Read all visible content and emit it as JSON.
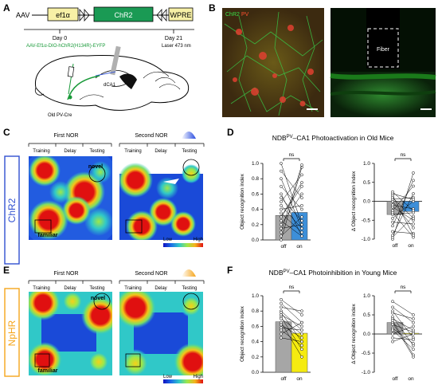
{
  "panels": {
    "A": {
      "letter": "A",
      "construct": {
        "aav": "AAV",
        "ef1a": "ef1α",
        "chr2": "ChR2",
        "wpre": "WPRE"
      },
      "timeline": {
        "day0": "Day 0",
        "day21": "Day 21",
        "virus": "AAV-Ef1α-DIO-hChR2(H134R)-EYFP",
        "laser": "Laser 473 nm"
      },
      "brain": {
        "region": "dCA1",
        "mouse": "Old PV-Cre"
      }
    },
    "B": {
      "letter": "B",
      "legend_chr2": "ChR2",
      "legend_pv": "PV",
      "fiber_label": "Fiber"
    },
    "C": {
      "letter": "C",
      "side_label": "ChR2",
      "first_nor": "First NOR",
      "second_nor": "Second NOR",
      "phases": [
        "Training",
        "Delay",
        "Testing"
      ],
      "novel": "novel",
      "familiar": "familiar",
      "scale_low": "Low",
      "scale_high": "High"
    },
    "D": {
      "letter": "D",
      "title_pre": "NDB",
      "title_sup": "PV",
      "title_post": "–CA1 Photoactivation in Old Mice",
      "ns": "ns",
      "colors": {
        "off": "#a6a6a6",
        "on": "#3d8fd9"
      }
    },
    "E": {
      "letter": "E",
      "side_label": "NpHR",
      "first_nor": "First NOR",
      "second_nor": "Second NOR",
      "phases": [
        "Training",
        "Delay",
        "Testing"
      ],
      "novel": "novel",
      "familiar": "familiar",
      "scale_low": "Low",
      "scale_high": "High"
    },
    "F": {
      "letter": "F",
      "title_pre": "NDB",
      "title_sup": "PV",
      "title_post": "–CA1 Photoinhibition in Young Mice",
      "ns": "ns",
      "colors": {
        "off": "#a6a6a6",
        "on": "#f5eb10"
      }
    }
  },
  "chart_data": [
    {
      "type": "bar",
      "panel": "D-left",
      "categories": [
        "off",
        "on"
      ],
      "values": [
        0.32,
        0.36
      ],
      "ylabel": "Object recognition index",
      "ylim": [
        0,
        1.0
      ],
      "yticks": [
        "0.0",
        "0.2",
        "0.4",
        "0.6",
        "0.8",
        "1.0"
      ],
      "pairs": [
        [
          0.0,
          0.95
        ],
        [
          0.05,
          0.3
        ],
        [
          0.1,
          0.98
        ],
        [
          0.15,
          0.2
        ],
        [
          0.2,
          0.6
        ],
        [
          0.25,
          0.05
        ],
        [
          0.3,
          0.75
        ],
        [
          0.35,
          0.1
        ],
        [
          0.4,
          0.45
        ],
        [
          0.45,
          0.15
        ],
        [
          0.5,
          0.85
        ],
        [
          0.55,
          0.25
        ],
        [
          0.6,
          0.05
        ],
        [
          0.7,
          0.4
        ],
        [
          0.8,
          0.15
        ],
        [
          0.9,
          0.55
        ],
        [
          1.0,
          0.2
        ],
        [
          0.3,
          0.7
        ]
      ]
    },
    {
      "type": "bar",
      "panel": "D-right",
      "categories": [
        "off",
        "on"
      ],
      "values": [
        -0.35,
        -0.27
      ],
      "ylabel": "Δ Object recognition index",
      "ylim": [
        -1.0,
        1.0
      ],
      "yticks": [
        "-1.0",
        "-0.5",
        "0.0",
        "0.5",
        "1.0"
      ],
      "pairs": [
        [
          -1.0,
          0.75
        ],
        [
          -0.95,
          -0.4
        ],
        [
          -0.9,
          0.2
        ],
        [
          -0.8,
          -0.85
        ],
        [
          -0.65,
          0.55
        ],
        [
          -0.55,
          -0.6
        ],
        [
          -0.45,
          0.0
        ],
        [
          -0.35,
          -0.3
        ],
        [
          -0.3,
          -0.95
        ],
        [
          -0.25,
          0.4
        ],
        [
          -0.15,
          -0.5
        ],
        [
          -0.1,
          -0.2
        ],
        [
          0.0,
          -0.7
        ],
        [
          0.05,
          0.1
        ],
        [
          0.1,
          -0.45
        ],
        [
          0.15,
          -0.9
        ],
        [
          0.2,
          0.05
        ],
        [
          0.25,
          -0.25
        ]
      ]
    },
    {
      "type": "bar",
      "panel": "F-left",
      "categories": [
        "off",
        "on"
      ],
      "values": [
        0.66,
        0.51
      ],
      "ylabel": "Object recognition index",
      "ylim": [
        0,
        1.0
      ],
      "yticks": [
        "0.0",
        "0.2",
        "0.4",
        "0.6",
        "0.8",
        "1.0"
      ],
      "pairs": [
        [
          0.95,
          0.75
        ],
        [
          0.9,
          0.65
        ],
        [
          0.85,
          0.8
        ],
        [
          0.8,
          0.55
        ],
        [
          0.78,
          0.4
        ],
        [
          0.75,
          0.6
        ],
        [
          0.72,
          0.3
        ],
        [
          0.7,
          0.5
        ],
        [
          0.65,
          0.2
        ],
        [
          0.62,
          0.45
        ],
        [
          0.58,
          0.55
        ],
        [
          0.55,
          0.35
        ],
        [
          0.5,
          0.65
        ],
        [
          0.45,
          0.4
        ]
      ]
    },
    {
      "type": "bar",
      "panel": "F-right",
      "categories": [
        "off",
        "on"
      ],
      "values": [
        0.3,
        0.02
      ],
      "ylabel": "Δ Object recognition index",
      "ylim": [
        -1.0,
        1.0
      ],
      "yticks": [
        "-1.0",
        "-0.5",
        "0.0",
        "0.5",
        "1.0"
      ],
      "pairs": [
        [
          0.85,
          0.5
        ],
        [
          0.7,
          0.3
        ],
        [
          0.6,
          -0.1
        ],
        [
          0.55,
          0.4
        ],
        [
          0.45,
          -0.3
        ],
        [
          0.4,
          0.1
        ],
        [
          0.3,
          -0.6
        ],
        [
          0.25,
          0.05
        ],
        [
          0.15,
          -0.25
        ],
        [
          0.1,
          -0.4
        ],
        [
          0.0,
          0.2
        ],
        [
          -0.1,
          -0.15
        ],
        [
          -0.2,
          0.0
        ],
        [
          0.35,
          -0.55
        ]
      ]
    }
  ]
}
